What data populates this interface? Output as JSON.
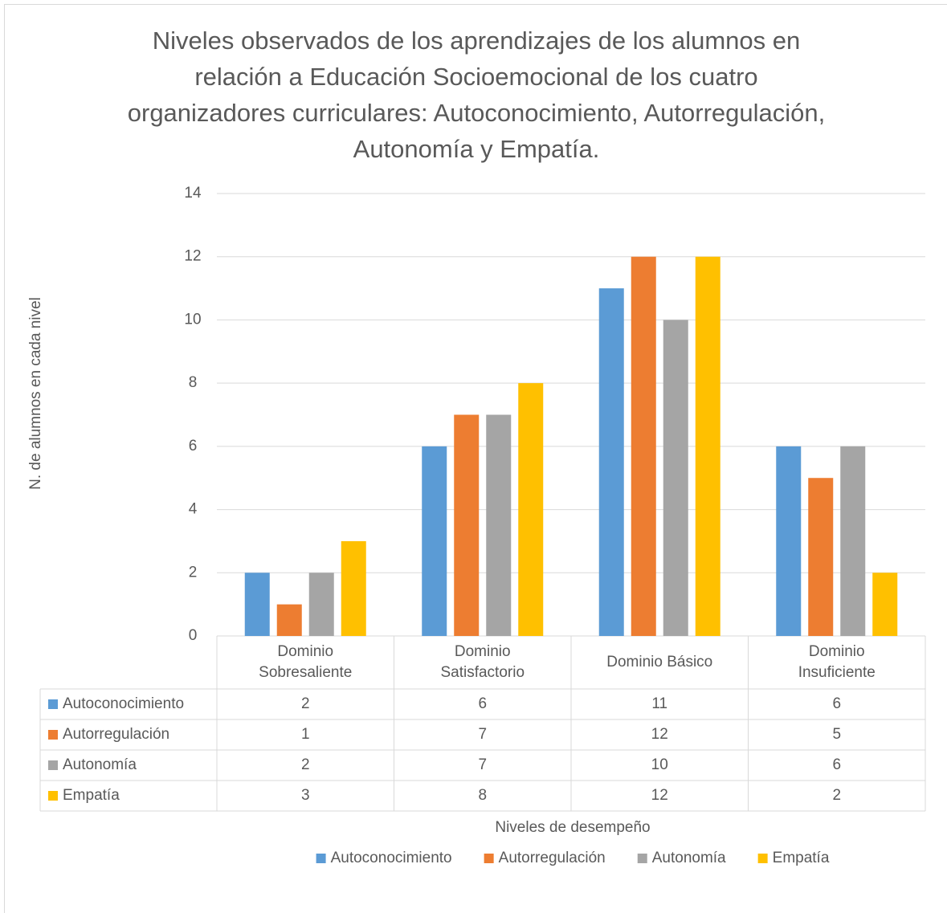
{
  "chart_data": {
    "type": "bar",
    "title": "Niveles observados de los aprendizajes de los alumnos en relación a Educación Socioemocional de los cuatro organizadores curriculares: Autoconocimiento, Autorregulación, Autonomía y Empatía.",
    "x_label": "Niveles de desempeño",
    "y_label": "N. de alumnos en cada nivel",
    "categories": [
      "Dominio Sobresaliente",
      "Dominio Satisfactorio",
      "Dominio Básico",
      "Dominio Insuficiente"
    ],
    "series": [
      {
        "name": "Autoconocimiento",
        "color": "#5b9bd5",
        "values": [
          2,
          6,
          11,
          6
        ]
      },
      {
        "name": "Autorregulación",
        "color": "#ed7d31",
        "values": [
          1,
          7,
          12,
          5
        ]
      },
      {
        "name": "Autonomía",
        "color": "#a5a5a5",
        "values": [
          2,
          7,
          10,
          6
        ]
      },
      {
        "name": "Empatía",
        "color": "#ffc000",
        "values": [
          3,
          8,
          12,
          2
        ]
      }
    ],
    "ylim": [
      0,
      14
    ],
    "yticks": [
      0,
      2,
      4,
      6,
      8,
      10,
      12,
      14
    ],
    "grid": true,
    "data_table": true,
    "legend": "bottom"
  }
}
